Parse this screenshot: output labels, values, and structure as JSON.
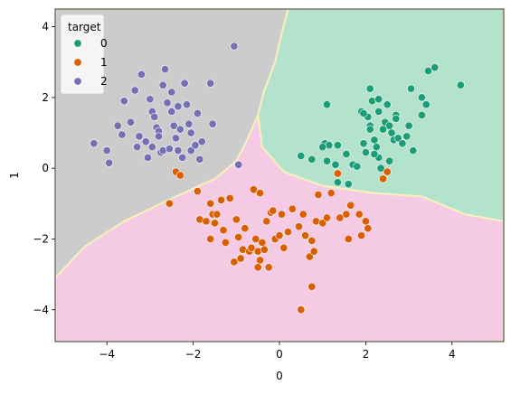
{
  "chart_data": {
    "type": "scatter",
    "title": "",
    "xlabel": "0",
    "ylabel": "1",
    "xlim": [
      -5.2,
      5.2
    ],
    "ylim": [
      -4.9,
      4.5
    ],
    "xticks": [
      -4,
      -2,
      0,
      2,
      4
    ],
    "yticks": [
      -4,
      -2,
      0,
      2,
      4
    ],
    "xtick_labels": [
      "−4",
      "−2",
      "0",
      "2",
      "4"
    ],
    "ytick_labels": [
      "−4",
      "−2",
      "0",
      "2",
      "4"
    ],
    "grid": false,
    "legend": {
      "title": "target",
      "placement": "top-left",
      "entries": [
        "0",
        "1",
        "2"
      ]
    },
    "colors": {
      "0": "#1b9e77",
      "1": "#d95f02",
      "2": "#7570b3",
      "region_0": "#b3e2cd",
      "region_1": "#f4cae4",
      "region_2": "#cccccc",
      "boundary": "#f7f0bd"
    },
    "decision_regions": [
      {
        "class": "2",
        "polygon": [
          [
            -5.2,
            4.5
          ],
          [
            0.2,
            4.5
          ],
          [
            0.05,
            3.8
          ],
          [
            -0.1,
            3.0
          ],
          [
            -0.35,
            2.2
          ],
          [
            -0.5,
            1.5
          ],
          [
            -0.75,
            0.8
          ],
          [
            -1.0,
            0.2
          ],
          [
            -1.5,
            -0.3
          ],
          [
            -2.4,
            -0.8
          ],
          [
            -3.6,
            -1.5
          ],
          [
            -4.5,
            -2.2
          ],
          [
            -5.2,
            -3.1
          ]
        ]
      },
      {
        "class": "0",
        "polygon": [
          [
            0.2,
            4.5
          ],
          [
            5.2,
            4.5
          ],
          [
            5.2,
            -1.5
          ],
          [
            4.3,
            -1.3
          ],
          [
            3.3,
            -0.8
          ],
          [
            2.2,
            -0.7
          ],
          [
            1.0,
            -0.5
          ],
          [
            0.1,
            -0.1
          ],
          [
            -0.4,
            0.6
          ],
          [
            -0.5,
            1.5
          ],
          [
            -0.35,
            2.2
          ],
          [
            -0.1,
            3.0
          ],
          [
            0.05,
            3.8
          ]
        ]
      },
      {
        "class": "1",
        "polygon": [
          [
            -5.2,
            -3.1
          ],
          [
            -4.5,
            -2.2
          ],
          [
            -3.6,
            -1.5
          ],
          [
            -2.4,
            -0.8
          ],
          [
            -1.5,
            -0.3
          ],
          [
            -1.0,
            0.2
          ],
          [
            -0.75,
            0.8
          ],
          [
            -0.5,
            1.5
          ],
          [
            -0.4,
            0.6
          ],
          [
            0.1,
            -0.1
          ],
          [
            1.0,
            -0.5
          ],
          [
            2.2,
            -0.7
          ],
          [
            3.3,
            -0.8
          ],
          [
            4.3,
            -1.3
          ],
          [
            5.2,
            -1.5
          ],
          [
            5.2,
            -4.9
          ],
          [
            -5.2,
            -4.9
          ]
        ]
      }
    ],
    "series": [
      {
        "name": "0",
        "points": [
          [
            1.1,
            1.8
          ],
          [
            1.05,
            0.7
          ],
          [
            1.15,
            0.65
          ],
          [
            1.1,
            0.2
          ],
          [
            1.3,
            0.1
          ],
          [
            1.35,
            0.65
          ],
          [
            1.55,
            0.4
          ],
          [
            1.7,
            0.1
          ],
          [
            1.8,
            0.05
          ],
          [
            1.9,
            1.6
          ],
          [
            2.0,
            1.5
          ],
          [
            2.05,
            1.45
          ],
          [
            2.1,
            1.2
          ],
          [
            2.1,
            1.1
          ],
          [
            2.2,
            0.8
          ],
          [
            2.25,
            0.6
          ],
          [
            2.3,
            0.3
          ],
          [
            2.35,
            0.0
          ],
          [
            2.15,
            1.9
          ],
          [
            2.3,
            1.6
          ],
          [
            2.45,
            1.3
          ],
          [
            2.55,
            1.2
          ],
          [
            2.6,
            1.0
          ],
          [
            2.65,
            0.8
          ],
          [
            2.75,
            0.85
          ],
          [
            2.95,
            0.9
          ],
          [
            3.0,
            1.2
          ],
          [
            3.1,
            0.5
          ],
          [
            3.05,
            2.25
          ],
          [
            2.7,
            1.5
          ],
          [
            3.3,
            1.5
          ],
          [
            3.4,
            1.8
          ],
          [
            3.3,
            2.0
          ],
          [
            3.45,
            2.75
          ],
          [
            3.6,
            2.85
          ],
          [
            4.2,
            2.35
          ],
          [
            2.1,
            2.25
          ],
          [
            2.5,
            1.8
          ],
          [
            2.3,
            1.95
          ],
          [
            1.35,
            -0.4
          ],
          [
            1.6,
            -0.45
          ],
          [
            0.5,
            0.35
          ],
          [
            0.75,
            0.25
          ],
          [
            1.0,
            0.6
          ],
          [
            2.7,
            1.4
          ],
          [
            2.4,
            1.1
          ],
          [
            2.2,
            0.4
          ],
          [
            1.95,
            0.7
          ],
          [
            2.0,
            0.45
          ],
          [
            2.85,
            0.7
          ],
          [
            1.95,
            1.55
          ],
          [
            2.55,
            0.2
          ]
        ]
      },
      {
        "name": "1",
        "points": [
          [
            -2.4,
            -0.1
          ],
          [
            -2.3,
            -0.2
          ],
          [
            -1.9,
            -0.65
          ],
          [
            -1.85,
            -1.45
          ],
          [
            -1.6,
            -1.0
          ],
          [
            -1.55,
            -1.3
          ],
          [
            -1.5,
            -1.55
          ],
          [
            -1.35,
            -0.9
          ],
          [
            -1.3,
            -1.75
          ],
          [
            -1.25,
            -2.1
          ],
          [
            -1.15,
            -0.85
          ],
          [
            -1.0,
            -1.45
          ],
          [
            -0.95,
            -1.95
          ],
          [
            -0.9,
            -2.55
          ],
          [
            -0.85,
            -2.3
          ],
          [
            -0.7,
            -2.35
          ],
          [
            -0.65,
            -2.25
          ],
          [
            -0.55,
            -2.0
          ],
          [
            -0.5,
            -2.35
          ],
          [
            -0.45,
            -2.6
          ],
          [
            -0.4,
            -2.1
          ],
          [
            -0.35,
            -2.3
          ],
          [
            -0.3,
            -1.5
          ],
          [
            -0.25,
            -2.8
          ],
          [
            -0.2,
            -1.25
          ],
          [
            -0.1,
            -2.0
          ],
          [
            0.0,
            -1.9
          ],
          [
            0.05,
            -1.3
          ],
          [
            0.1,
            -2.25
          ],
          [
            0.3,
            -1.15
          ],
          [
            0.45,
            -1.65
          ],
          [
            0.6,
            -1.9
          ],
          [
            0.7,
            -2.5
          ],
          [
            0.75,
            -2.05
          ],
          [
            0.8,
            -2.35
          ],
          [
            0.85,
            -1.5
          ],
          [
            0.9,
            -0.75
          ],
          [
            1.0,
            -1.55
          ],
          [
            1.1,
            -1.4
          ],
          [
            1.2,
            -0.7
          ],
          [
            1.35,
            -0.15
          ],
          [
            1.4,
            -1.4
          ],
          [
            1.55,
            -1.3
          ],
          [
            1.6,
            -2.0
          ],
          [
            1.65,
            -1.05
          ],
          [
            1.85,
            -1.3
          ],
          [
            1.9,
            -1.9
          ],
          [
            2.0,
            -1.5
          ],
          [
            2.05,
            -1.7
          ],
          [
            2.4,
            -0.3
          ],
          [
            2.5,
            -0.1
          ],
          [
            -2.55,
            -1.0
          ],
          [
            -0.6,
            -0.6
          ],
          [
            -0.45,
            -0.7
          ],
          [
            0.5,
            -4.0
          ],
          [
            0.75,
            -3.35
          ],
          [
            -0.5,
            -2.8
          ],
          [
            -1.05,
            -2.65
          ],
          [
            -0.8,
            -1.7
          ],
          [
            -1.45,
            -1.3
          ],
          [
            -1.6,
            -2.0
          ],
          [
            -1.7,
            -1.5
          ],
          [
            0.2,
            -1.8
          ],
          [
            -0.15,
            -1.2
          ],
          [
            0.55,
            -1.3
          ]
        ]
      },
      {
        "name": "2",
        "points": [
          [
            -4.3,
            0.7
          ],
          [
            -4.0,
            0.5
          ],
          [
            -3.95,
            0.15
          ],
          [
            -3.75,
            1.2
          ],
          [
            -3.65,
            0.95
          ],
          [
            -3.6,
            1.9
          ],
          [
            -3.45,
            1.3
          ],
          [
            -3.35,
            2.2
          ],
          [
            -3.3,
            0.6
          ],
          [
            -3.2,
            2.65
          ],
          [
            -3.1,
            0.75
          ],
          [
            -3.05,
            0.3
          ],
          [
            -3.0,
            1.95
          ],
          [
            -2.95,
            1.6
          ],
          [
            -2.9,
            1.45
          ],
          [
            -2.85,
            1.15
          ],
          [
            -2.8,
            1.05
          ],
          [
            -2.75,
            0.45
          ],
          [
            -2.7,
            0.5
          ],
          [
            -2.65,
            2.8
          ],
          [
            -2.6,
            1.85
          ],
          [
            -2.55,
            0.55
          ],
          [
            -2.5,
            1.6
          ],
          [
            -2.45,
            1.2
          ],
          [
            -2.4,
            0.85
          ],
          [
            -2.35,
            0.5
          ],
          [
            -2.3,
            1.1
          ],
          [
            -2.25,
            0.3
          ],
          [
            -2.2,
            2.4
          ],
          [
            -2.15,
            1.8
          ],
          [
            -2.1,
            1.25
          ],
          [
            -2.05,
            1.0
          ],
          [
            -2.05,
            0.5
          ],
          [
            -1.95,
            0.65
          ],
          [
            -1.8,
            0.75
          ],
          [
            -1.9,
            1.55
          ],
          [
            -1.85,
            0.25
          ],
          [
            -1.55,
            1.25
          ],
          [
            -1.6,
            2.4
          ],
          [
            -1.05,
            3.45
          ],
          [
            -0.95,
            0.1
          ],
          [
            -2.7,
            2.35
          ],
          [
            -2.5,
            2.15
          ],
          [
            -2.35,
            1.75
          ],
          [
            -2.8,
            0.9
          ],
          [
            -3.25,
            0.9
          ],
          [
            -2.95,
            0.6
          ]
        ]
      }
    ]
  }
}
